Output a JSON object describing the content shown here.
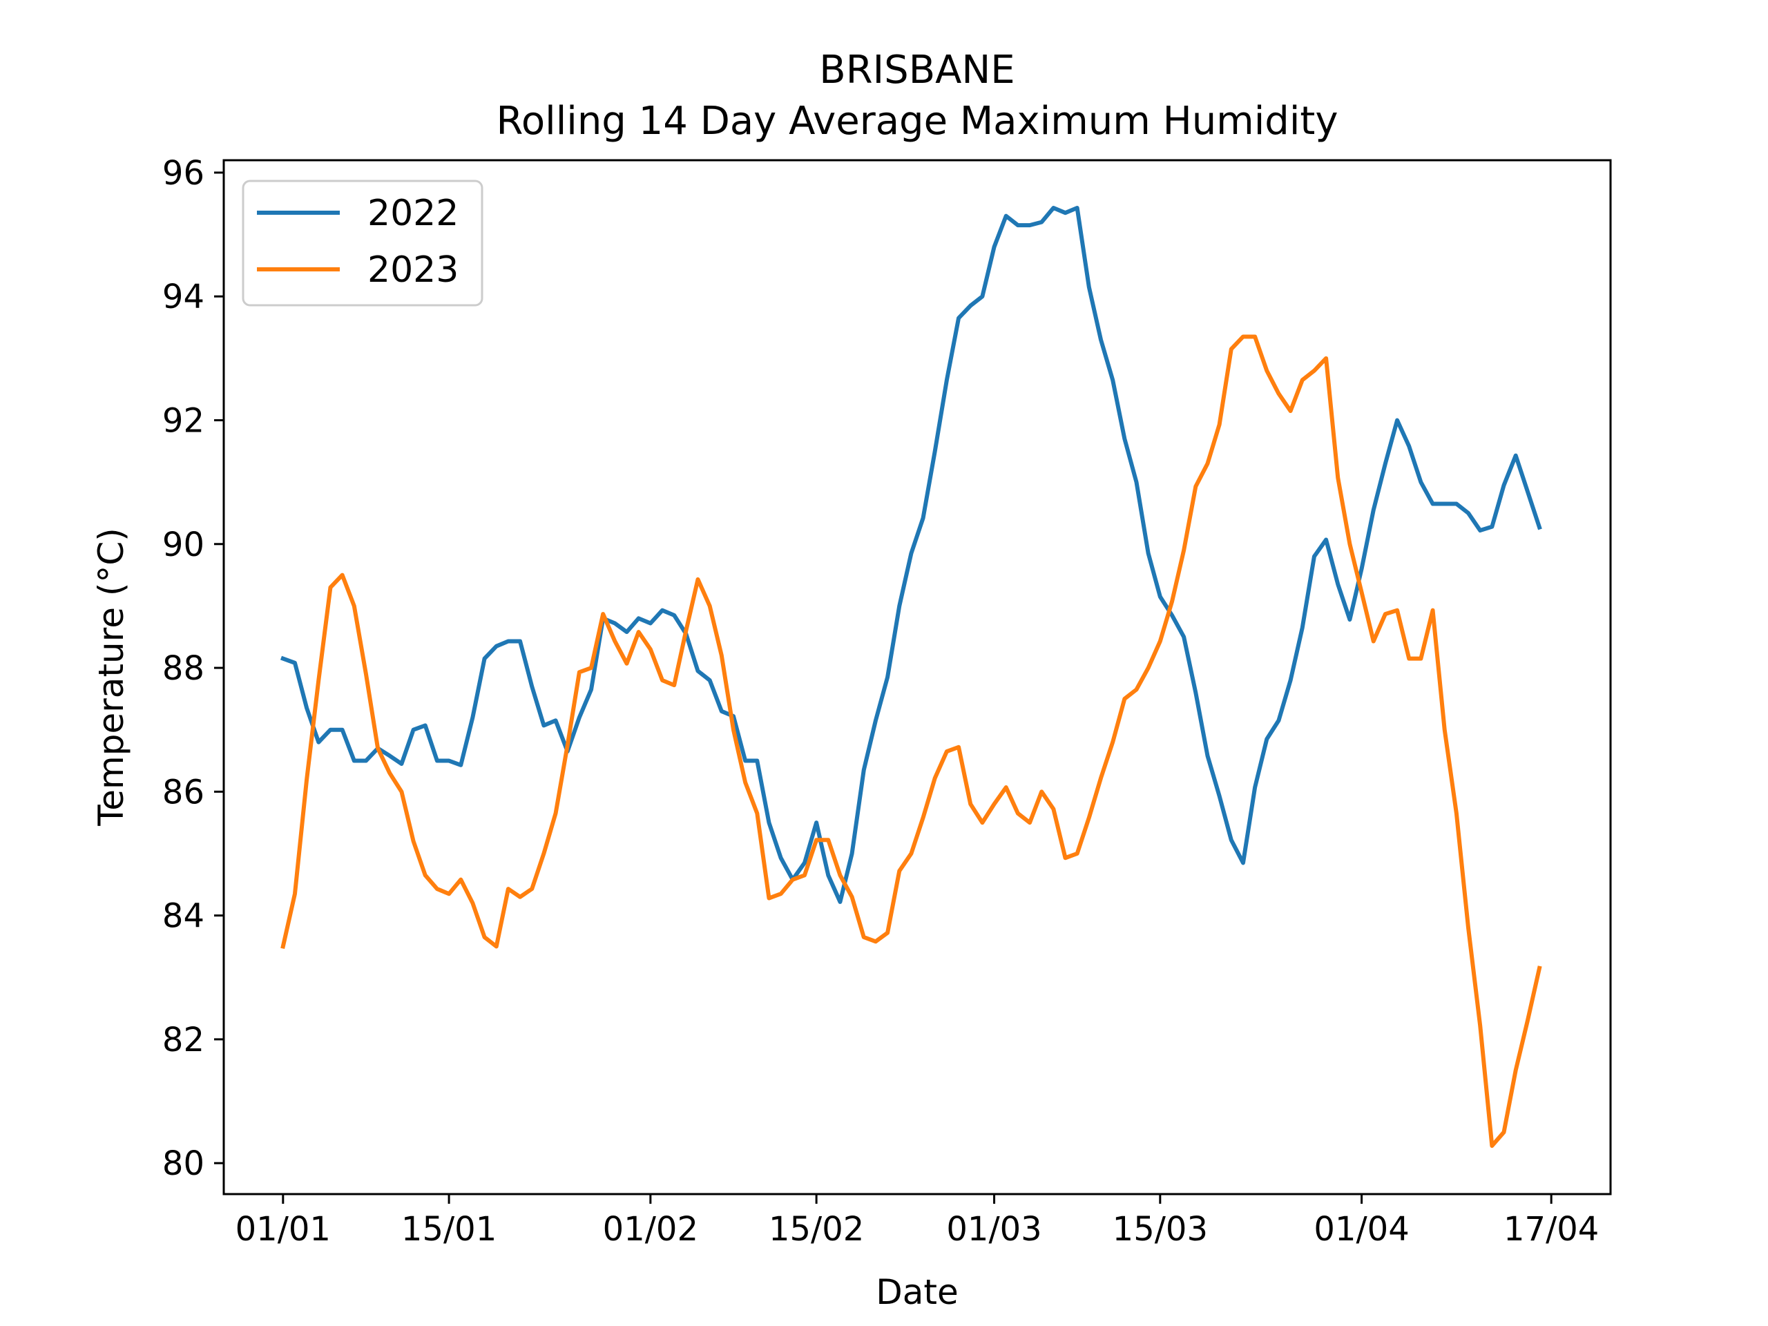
{
  "chart_data": {
    "type": "line",
    "title": "BRISBANE",
    "subtitle": "Rolling 14 Day Average Maximum Humidity",
    "xlabel": "Date",
    "ylabel": "Temperature (°C)",
    "x_start": "2000-01-01",
    "x_end": "2000-04-17",
    "xlim": [
      "1999-12-27",
      "2000-04-22"
    ],
    "ylim": [
      79.5,
      96.2
    ],
    "x_ticks": [
      {
        "date": "2000-01-01",
        "label": "01/01"
      },
      {
        "date": "2000-01-15",
        "label": "15/01"
      },
      {
        "date": "2000-02-01",
        "label": "01/02"
      },
      {
        "date": "2000-02-15",
        "label": "15/02"
      },
      {
        "date": "2000-03-01",
        "label": "01/03"
      },
      {
        "date": "2000-03-15",
        "label": "15/03"
      },
      {
        "date": "2000-04-01",
        "label": "01/04"
      },
      {
        "date": "2000-04-17",
        "label": "17/04"
      }
    ],
    "y_ticks": [
      80,
      82,
      84,
      86,
      88,
      90,
      92,
      94,
      96
    ],
    "legend_position": "top-left",
    "grid": false,
    "series": [
      {
        "name": "2022",
        "color": "#1f77b4",
        "values": [
          88.15,
          88.08,
          87.35,
          86.8,
          87.0,
          87.0,
          86.5,
          86.5,
          86.7,
          86.58,
          86.45,
          87.0,
          87.07,
          86.5,
          86.5,
          86.43,
          87.2,
          88.15,
          88.35,
          88.43,
          88.43,
          87.7,
          87.07,
          87.15,
          86.65,
          87.2,
          87.65,
          88.8,
          88.72,
          88.58,
          88.8,
          88.72,
          88.93,
          88.85,
          88.55,
          87.95,
          87.8,
          87.3,
          87.22,
          86.5,
          86.5,
          85.5,
          84.93,
          84.58,
          84.85,
          85.5,
          84.65,
          84.22,
          85.0,
          86.35,
          87.15,
          87.85,
          89.0,
          89.85,
          90.42,
          91.5,
          92.65,
          93.65,
          93.85,
          94.0,
          94.8,
          95.3,
          95.15,
          95.15,
          95.2,
          95.43,
          95.35,
          95.43,
          94.15,
          93.3,
          92.65,
          91.7,
          91.0,
          89.85,
          89.15,
          88.85,
          88.5,
          87.6,
          86.58,
          85.93,
          85.22,
          84.85,
          86.07,
          86.85,
          87.15,
          87.8,
          88.65,
          89.8,
          90.07,
          89.35,
          88.78,
          89.6,
          90.55,
          91.3,
          92.0,
          91.58,
          91.0,
          90.65,
          90.65,
          90.65,
          90.5,
          90.22,
          90.28,
          90.95,
          91.43,
          90.85,
          90.27
        ]
      },
      {
        "name": "2023",
        "color": "#ff7f0e",
        "values": [
          83.5,
          84.35,
          86.2,
          87.8,
          89.3,
          89.5,
          89.0,
          87.9,
          86.7,
          86.3,
          86.0,
          85.2,
          84.65,
          84.43,
          84.35,
          84.58,
          84.2,
          83.65,
          83.5,
          84.43,
          84.3,
          84.43,
          85.0,
          85.65,
          86.75,
          87.93,
          88.0,
          88.87,
          88.43,
          88.07,
          88.58,
          88.3,
          87.8,
          87.72,
          88.6,
          89.43,
          89.0,
          88.2,
          87.0,
          86.15,
          85.65,
          84.28,
          84.35,
          84.58,
          84.65,
          85.22,
          85.22,
          84.65,
          84.3,
          83.65,
          83.58,
          83.72,
          84.72,
          85.0,
          85.58,
          86.22,
          86.65,
          86.72,
          85.8,
          85.5,
          85.8,
          86.07,
          85.65,
          85.5,
          86.0,
          85.72,
          84.93,
          85.0,
          85.58,
          86.22,
          86.8,
          87.5,
          87.65,
          88.0,
          88.43,
          89.07,
          89.9,
          90.93,
          91.3,
          91.93,
          93.15,
          93.35,
          93.35,
          92.8,
          92.43,
          92.15,
          92.65,
          92.8,
          93.0,
          91.07,
          90.0,
          89.22,
          88.43,
          88.87,
          88.93,
          88.15,
          88.15,
          88.93,
          87.0,
          85.65,
          83.8,
          82.22,
          80.28,
          80.5,
          81.5,
          82.3,
          83.15
        ]
      }
    ]
  }
}
